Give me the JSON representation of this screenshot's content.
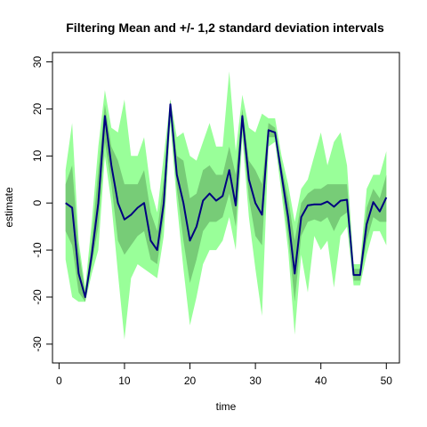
{
  "chart_data": {
    "type": "area",
    "title": "Filtering Mean and +/- 1,2 standard deviation intervals",
    "xlabel": "time",
    "ylabel": "estimate",
    "xlim": [
      -1,
      52
    ],
    "ylim": [
      -34,
      32
    ],
    "xticks": [
      0,
      10,
      20,
      30,
      40,
      50
    ],
    "yticks": [
      -30,
      -20,
      -10,
      0,
      10,
      20,
      30
    ],
    "colors": {
      "band2": "#99ff99",
      "band1": "#77cc77",
      "mean": "#000080"
    },
    "x": [
      1,
      2,
      3,
      4,
      5,
      6,
      7,
      8,
      9,
      10,
      11,
      12,
      13,
      14,
      15,
      16,
      17,
      18,
      19,
      20,
      21,
      22,
      23,
      24,
      25,
      26,
      27,
      28,
      29,
      30,
      31,
      32,
      33,
      34,
      35,
      36,
      37,
      38,
      39,
      40,
      41,
      42,
      43,
      44,
      45,
      46,
      47,
      48,
      49,
      50
    ],
    "series": [
      {
        "role": "mean",
        "values": [
          0,
          -1,
          -15,
          -20,
          -11,
          0,
          18.5,
          8,
          0,
          -3.5,
          -2.5,
          -1,
          0,
          -8,
          -10,
          0,
          21,
          6,
          0,
          -8,
          -5,
          0.5,
          2,
          0.5,
          1.5,
          7,
          -0.5,
          18.5,
          5,
          0,
          -2.5,
          15.5,
          15,
          6,
          -3,
          -15,
          -3,
          -0.5,
          -0.3,
          -0.3,
          0.3,
          -0.8,
          0.5,
          0.7,
          -15.3,
          -15.3,
          -4.5,
          0.2,
          -1.8,
          1.2
        ]
      },
      {
        "role": "band1",
        "lower": [
          -6,
          -9,
          -19,
          -21,
          -13,
          -5,
          13,
          4,
          -8,
          -11,
          -9,
          -7,
          -6,
          -12,
          -13,
          -3,
          19,
          3,
          -8,
          -17,
          -12,
          -6,
          -4,
          -4,
          -3,
          2,
          -5,
          16,
          1,
          -7,
          -9,
          14,
          14,
          4,
          -7,
          -21,
          -7,
          -4,
          -3.5,
          -4,
          -3,
          -6,
          -3,
          -2,
          -16.5,
          -16.5,
          -8,
          -3,
          -4,
          -4
        ]
      },
      {
        "role": "band1",
        "upper": [
          4,
          8,
          -10,
          -19,
          -8,
          7,
          21,
          12,
          9,
          4,
          4,
          4,
          7,
          -2,
          -6,
          5,
          22,
          10,
          9,
          1,
          2,
          7,
          8,
          6,
          6,
          12,
          6,
          20,
          9,
          7,
          4,
          17,
          16,
          8,
          1,
          -8,
          0,
          2,
          3,
          3,
          4,
          4,
          4,
          4,
          -14,
          -14,
          -1,
          3,
          1,
          6
        ]
      },
      {
        "role": "band2",
        "lower": [
          -12,
          -20,
          -21,
          -21,
          -15,
          -10,
          10,
          0,
          -15,
          -29,
          -16,
          -13,
          -14,
          -15,
          -16,
          -7,
          17,
          0,
          -14,
          -26,
          -20,
          -13,
          -10,
          -10,
          -8,
          -3,
          -10,
          14,
          -3,
          -14,
          -24,
          12,
          13,
          2,
          -10,
          -28,
          -11,
          -19,
          -7,
          -10,
          -8,
          -18,
          -7,
          -5,
          -17.5,
          -17.5,
          -11,
          -6,
          -6,
          -9
        ]
      },
      {
        "role": "band2",
        "upper": [
          7,
          17,
          -8,
          -18,
          -4,
          12,
          24,
          16,
          15,
          22,
          10,
          10,
          14,
          3,
          -2,
          10,
          22,
          14,
          15,
          10,
          9,
          13,
          17,
          12,
          12,
          28,
          11,
          23,
          16,
          15,
          19,
          18,
          18,
          10,
          4,
          -4,
          3,
          5,
          10,
          15,
          8,
          13,
          15,
          8,
          -13,
          -13,
          3,
          6,
          6,
          11
        ]
      }
    ]
  }
}
